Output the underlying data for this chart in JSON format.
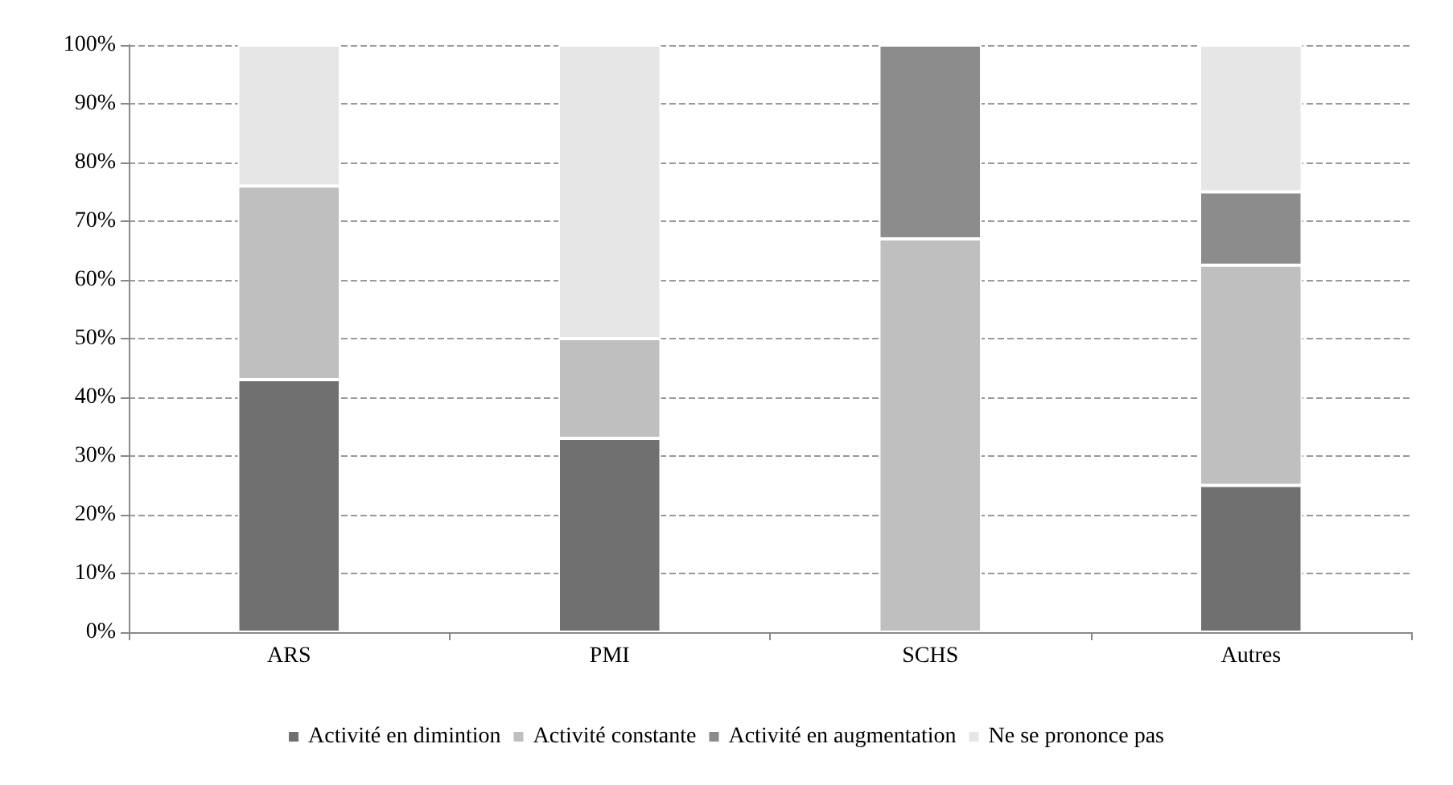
{
  "chart_data": {
    "type": "bar",
    "stacked": true,
    "categories": [
      "ARS",
      "PMI",
      "SCHS",
      "Autres"
    ],
    "series": [
      {
        "name": "Activité en dimintion",
        "color": "#707070",
        "values": [
          43,
          33,
          null,
          25
        ]
      },
      {
        "name": "Activité constante",
        "color": "#bfbfbf",
        "values": [
          33,
          17,
          67,
          37.5
        ]
      },
      {
        "name": "Activité en augmentation",
        "color": "#8c8c8c",
        "values": [
          null,
          null,
          33,
          12.5
        ]
      },
      {
        "name": "Ne se prononce pas",
        "color": "#e6e6e6",
        "values": [
          24,
          50,
          null,
          25
        ]
      }
    ],
    "ylim": [
      0,
      100
    ],
    "yticks": [
      {
        "value": 0,
        "label": "0%"
      },
      {
        "value": 10,
        "label": "10%"
      },
      {
        "value": 20,
        "label": "20%"
      },
      {
        "value": 30,
        "label": "30%"
      },
      {
        "value": 40,
        "label": "40%"
      },
      {
        "value": 50,
        "label": "50%"
      },
      {
        "value": 60,
        "label": "60%"
      },
      {
        "value": 70,
        "label": "70%"
      },
      {
        "value": 80,
        "label": "80%"
      },
      {
        "value": 90,
        "label": "90%"
      },
      {
        "value": 100,
        "label": "100%"
      }
    ],
    "grid": "y",
    "legend": "bottom"
  }
}
